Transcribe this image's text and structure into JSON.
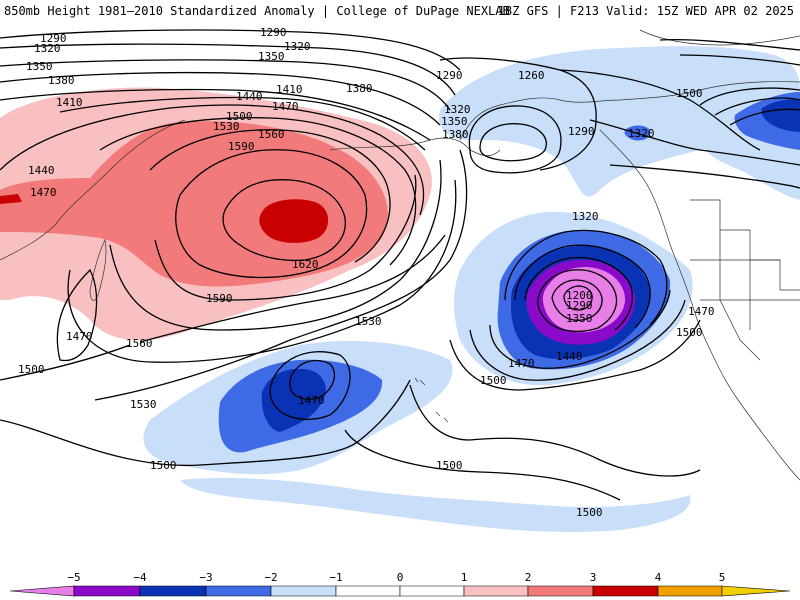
{
  "header": {
    "title_left": "850mb Height 1981–2010 Standardized Anomaly | College of DuPage NEXLAB",
    "title_right": "18Z GFS | F213 Valid: 15Z WED APR 02 2025"
  },
  "colors": {
    "neg5": "#e87fe8",
    "neg4": "#8a0ac9",
    "neg3": "#0a32b4",
    "neg2": "#3e6ae6",
    "neg1": "#c9def9",
    "pos1": "#f8c0c0",
    "pos2": "#f27a7a",
    "pos3": "#c80000",
    "pos4": "#f2a000",
    "pos5": "#f2d000"
  },
  "contour_labels": [
    "1290",
    "1320",
    "1350",
    "1380",
    "1410",
    "1440",
    "1470",
    "1290",
    "1320",
    "1350",
    "1380",
    "1410",
    "1440",
    "1470",
    "1500",
    "1530",
    "1560",
    "1590",
    "1620",
    "1590",
    "1560",
    "1530",
    "1500",
    "1470",
    "1290",
    "1320",
    "1350",
    "1380",
    "1260",
    "1320",
    "1290",
    "1320",
    "1200",
    "1290",
    "1350",
    "1440",
    "1470",
    "1500",
    "1470",
    "1500",
    "1530",
    "1500",
    "1500",
    "1500",
    "1470",
    "1500"
  ],
  "legend": {
    "ticks": [
      "−5",
      "−4",
      "−3",
      "−2",
      "−1",
      "0",
      "1",
      "2",
      "3",
      "4",
      "5"
    ]
  }
}
